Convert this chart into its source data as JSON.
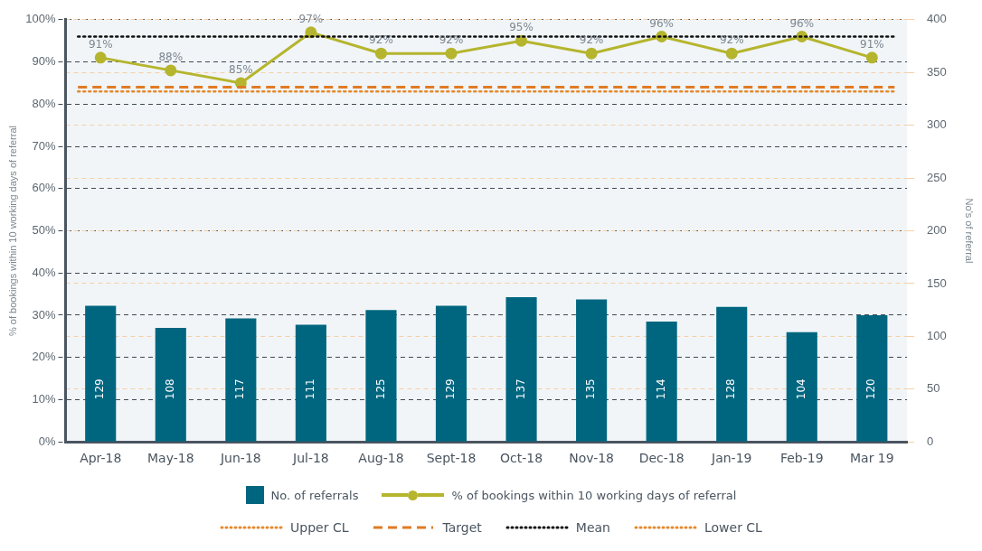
{
  "chart_data": {
    "type": "bar",
    "ylabel": "% of bookings within 10 working days of referral",
    "y2label": "No's of referral",
    "categories": [
      "Apr-18",
      "May-18",
      "Jun-18",
      "Jul-18",
      "Aug-18",
      "Sept-18",
      "Oct-18",
      "Nov-18",
      "Dec-18",
      "Jan-19",
      "Feb-19",
      "Mar 19"
    ],
    "series": [
      {
        "name": "No. of referrals",
        "axis": "y2",
        "color": "#006680",
        "values": [
          129,
          108,
          117,
          111,
          125,
          129,
          137,
          135,
          114,
          128,
          104,
          120
        ],
        "value_labels": [
          "129",
          "108",
          "117",
          "111",
          "125",
          "129",
          "137",
          "135",
          "114",
          "128",
          "104",
          "120"
        ]
      },
      {
        "name": "% of bookings within 10 working days of referral",
        "type": "line",
        "axis": "y",
        "color": "#b5b52e",
        "values": [
          91,
          88,
          85,
          97,
          92,
          92,
          95,
          92,
          96,
          92,
          96,
          91
        ],
        "value_labels": [
          "91%",
          "88%",
          "85%",
          "97%",
          "92%",
          "92%",
          "95%",
          "92%",
          "96%",
          "92%",
          "96%",
          "91%"
        ]
      }
    ],
    "ylim": [
      0,
      100
    ],
    "yticks": [
      {
        "value": 0,
        "label": "0%"
      },
      {
        "value": 10,
        "label": "10%"
      },
      {
        "value": 20,
        "label": "20%"
      },
      {
        "value": 30,
        "label": "30%"
      },
      {
        "value": 40,
        "label": "40%"
      },
      {
        "value": 50,
        "label": "50%"
      },
      {
        "value": 60,
        "label": "60%"
      },
      {
        "value": 70,
        "label": "70%"
      },
      {
        "value": 80,
        "label": "80%"
      },
      {
        "value": 90,
        "label": "90%"
      },
      {
        "value": 100,
        "label": "100%"
      }
    ],
    "y2lim": [
      0,
      400
    ],
    "y2ticks": [
      0,
      50,
      100,
      150,
      200,
      250,
      300,
      350,
      400
    ],
    "ref_lines": [
      {
        "axis": "y",
        "value": null,
        "label": "Upper CL",
        "color": "#e58a2e",
        "line_style": "dotted"
      },
      {
        "axis": "y",
        "value": 84,
        "label": "Target",
        "color": "#e07b24",
        "line_style": "dashed"
      },
      {
        "axis": "y",
        "value": 96,
        "label": "Mean",
        "color": "#111111",
        "line_style": "dotted"
      },
      {
        "axis": "y",
        "value": 83,
        "label": "Lower CL",
        "color": "#e58a2e",
        "line_style": "dotted"
      }
    ],
    "grid": "y",
    "legend": "bottom",
    "marker": "circle",
    "line_style": "solid"
  }
}
